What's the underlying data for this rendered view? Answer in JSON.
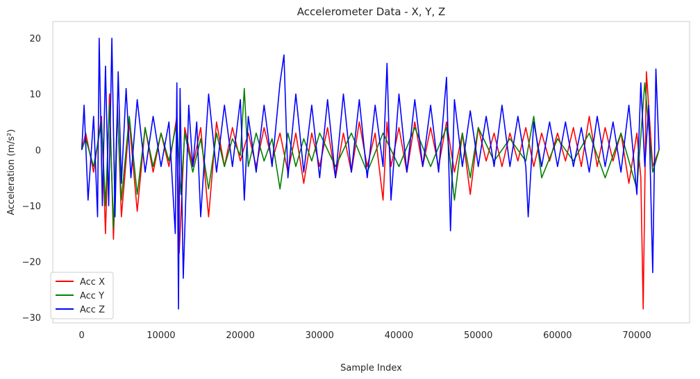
{
  "chart_data": {
    "type": "line",
    "title": "Accelerometer Data - X, Y, Z",
    "xlabel": "Sample Index",
    "ylabel": "Acceleration (m/s²)",
    "xlim": [
      -3650,
      76650
    ],
    "ylim": [
      -31,
      23
    ],
    "xticks": [
      0,
      10000,
      20000,
      30000,
      40000,
      50000,
      60000,
      70000
    ],
    "yticks": [
      -30,
      -20,
      -10,
      0,
      10,
      20
    ],
    "grid": false,
    "legend_position": "lower-left",
    "series": [
      {
        "name": "Acc X",
        "color": "#ff0000",
        "x": [
          0,
          500,
          1500,
          2500,
          3000,
          3500,
          4000,
          4500,
          5000,
          6000,
          7000,
          8000,
          9000,
          10000,
          11000,
          12000,
          12300,
          13000,
          14000,
          15000,
          16000,
          17000,
          18000,
          19000,
          20000,
          21000,
          22000,
          23000,
          24000,
          25000,
          26000,
          27000,
          28000,
          29000,
          30000,
          31000,
          32000,
          33000,
          34000,
          35000,
          36000,
          37000,
          38000,
          38500,
          39000,
          40000,
          41000,
          42000,
          43000,
          44000,
          45000,
          46000,
          47000,
          48000,
          49000,
          50000,
          51000,
          52000,
          53000,
          54000,
          55000,
          56000,
          57000,
          58000,
          59000,
          60000,
          61000,
          62000,
          63000,
          64000,
          65000,
          66000,
          67000,
          68000,
          69000,
          70000,
          70500,
          70800,
          71200,
          72000,
          72800
        ],
        "y": [
          0,
          3,
          -4,
          6,
          -15,
          10,
          -16,
          8,
          -12,
          5,
          -11,
          4,
          -4,
          3,
          -3,
          6,
          -18.5,
          4,
          -3,
          4,
          -12,
          5,
          -3,
          4,
          -2,
          3,
          -3,
          4,
          -2,
          3,
          -4,
          3,
          -6,
          3,
          -3,
          4,
          -5,
          3,
          -4,
          5,
          -3,
          3,
          -9,
          5,
          -3,
          4,
          -4,
          5,
          -3,
          4,
          -3,
          5,
          -4,
          3,
          -8,
          4,
          -2,
          3,
          -3,
          3,
          -2,
          4,
          -3,
          3,
          -2,
          3,
          -2,
          4,
          -3,
          6,
          -3,
          4,
          -2,
          3,
          -6,
          3,
          -5,
          -28.5,
          14,
          -3,
          0
        ]
      },
      {
        "name": "Acc Y",
        "color": "#008000",
        "x": [
          0,
          500,
          1500,
          2500,
          3000,
          3500,
          4000,
          4500,
          5000,
          6000,
          7000,
          8000,
          9000,
          10000,
          11000,
          12000,
          12500,
          13000,
          14000,
          15000,
          16000,
          17000,
          18000,
          19000,
          20000,
          20500,
          21000,
          22000,
          23000,
          24000,
          25000,
          26000,
          27000,
          28000,
          29000,
          30000,
          32000,
          34000,
          36000,
          38000,
          40000,
          42000,
          44000,
          46000,
          47000,
          48000,
          49000,
          50000,
          52000,
          54000,
          56000,
          57000,
          58000,
          60000,
          62000,
          64000,
          66000,
          68000,
          70000,
          71000,
          72000,
          72800
        ],
        "y": [
          0,
          2,
          -3,
          5,
          -10,
          8,
          -14,
          7,
          -9,
          6,
          -8,
          4,
          -3,
          3,
          -2,
          5,
          -8,
          3,
          -4,
          2,
          -7,
          3,
          -3,
          2,
          -1,
          11,
          -3,
          3,
          -2,
          2,
          -7,
          3,
          -3,
          2,
          -2,
          3,
          -3,
          3,
          -4,
          3,
          -3,
          4,
          -3,
          4,
          -9,
          3,
          -5,
          4,
          -2,
          2,
          -2,
          6,
          -5,
          2,
          -2,
          3,
          -5,
          3,
          -7,
          12,
          -4,
          0
        ]
      },
      {
        "name": "Acc Z",
        "color": "#0000ff",
        "x": [
          0,
          300,
          800,
          1500,
          2000,
          2200,
          2600,
          3000,
          3400,
          3800,
          4200,
          4600,
          5000,
          5600,
          6200,
          7000,
          8000,
          9000,
          10000,
          11000,
          11800,
          12000,
          12200,
          12400,
          12800,
          13500,
          14000,
          14500,
          15000,
          16000,
          17000,
          18000,
          19000,
          20000,
          20500,
          21000,
          22000,
          23000,
          24000,
          25000,
          25500,
          26000,
          27000,
          28000,
          29000,
          30000,
          31000,
          32000,
          33000,
          34000,
          35000,
          36000,
          37000,
          38000,
          38500,
          39000,
          40000,
          41000,
          42000,
          43000,
          44000,
          45000,
          46000,
          46500,
          47000,
          48000,
          49000,
          50000,
          51000,
          52000,
          53000,
          54000,
          55000,
          56000,
          56300,
          57000,
          58000,
          59000,
          60000,
          61000,
          62000,
          63000,
          64000,
          65000,
          66000,
          67000,
          68000,
          69000,
          70000,
          70500,
          71000,
          71500,
          72000,
          72400,
          72800
        ],
        "y": [
          0,
          8,
          -9,
          6,
          -12,
          20,
          -10,
          15,
          -10,
          20,
          -12,
          14,
          -6,
          11,
          -5,
          9,
          -4,
          6,
          -3,
          5,
          -15,
          12,
          -28.5,
          11,
          -23,
          8,
          -3,
          5,
          -12,
          10,
          -4,
          8,
          -3,
          9,
          -9,
          6,
          -4,
          8,
          -3,
          12,
          17,
          -5,
          10,
          -4,
          8,
          -5,
          9,
          -5,
          10,
          -4,
          9,
          -5,
          8,
          -3,
          15.5,
          -9,
          10,
          -4,
          9,
          -3,
          8,
          -4,
          13,
          -14.5,
          9,
          -3,
          7,
          -3,
          6,
          -3,
          8,
          -3,
          6,
          -3,
          -12,
          5,
          -3,
          5,
          -3,
          5,
          -3,
          4,
          -4,
          6,
          -3,
          5,
          -4,
          8,
          -8,
          12,
          -3,
          8,
          -22,
          14.5,
          0
        ]
      }
    ]
  }
}
